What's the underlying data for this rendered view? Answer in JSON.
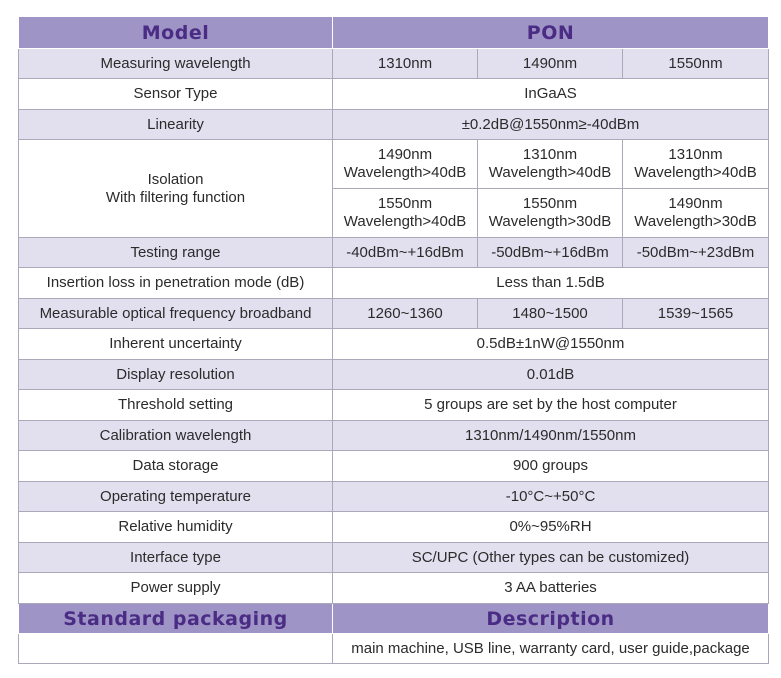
{
  "header": {
    "model": "Model",
    "pon": "PON"
  },
  "rows": {
    "wavelength": {
      "label": "Measuring wavelength",
      "v1": "1310nm",
      "v2": "1490nm",
      "v3": "1550nm"
    },
    "sensor": {
      "label": "Sensor Type",
      "value": "InGaAS"
    },
    "linearity": {
      "label": "Linearity",
      "value": "±0.2dB@1550nm≥-40dBm"
    },
    "isolation": {
      "label_line1": "Isolation",
      "label_line2": "With filtering function",
      "r1c1_a": "1490nm",
      "r1c1_b": "Wavelength>40dB",
      "r1c2_a": "1310nm",
      "r1c2_b": "Wavelength>40dB",
      "r1c3_a": "1310nm",
      "r1c3_b": "Wavelength>40dB",
      "r2c1_a": "1550nm",
      "r2c1_b": "Wavelength>40dB",
      "r2c2_a": "1550nm",
      "r2c2_b": "Wavelength>30dB",
      "r2c3_a": "1490nm",
      "r2c3_b": "Wavelength>30dB"
    },
    "testing_range": {
      "label": "Testing range",
      "v1": "-40dBm~+16dBm",
      "v2": "-50dBm~+16dBm",
      "v3": "-50dBm~+23dBm"
    },
    "insertion_loss": {
      "label": "Insertion loss in penetration mode (dB)",
      "value": "Less than 1.5dB"
    },
    "broadband": {
      "label": "Measurable optical frequency broadband",
      "v1": "1260~1360",
      "v2": "1480~1500",
      "v3": "1539~1565"
    },
    "uncertainty": {
      "label": "Inherent uncertainty",
      "value": "0.5dB±1nW@1550nm"
    },
    "resolution": {
      "label": "Display resolution",
      "value": "0.01dB"
    },
    "threshold": {
      "label": "Threshold setting",
      "value": "5 groups are set by the host computer"
    },
    "calibration": {
      "label": "Calibration wavelength",
      "value": "1310nm/1490nm/1550nm"
    },
    "storage": {
      "label": "Data storage",
      "value": "900 groups"
    },
    "temperature": {
      "label": "Operating temperature",
      "value": "-10°C~+50°C"
    },
    "humidity": {
      "label": "Relative humidity",
      "value": "0%~95%RH"
    },
    "interface": {
      "label": "Interface type",
      "value": "SC/UPC (Other types can be customized)"
    },
    "power": {
      "label": "Power supply",
      "value": "3 AA batteries"
    }
  },
  "packaging": {
    "header_left": "Standard packaging",
    "header_right": "Description",
    "value_left": "",
    "value_right": "main machine, USB line, warranty card, user guide,package"
  }
}
